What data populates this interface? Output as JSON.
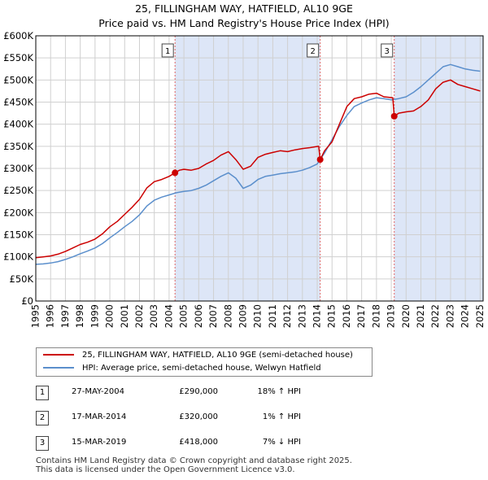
{
  "title_line1": "25, FILLINGHAM WAY, HATFIELD, AL10 9GE",
  "title_line2": "Price paid vs. HM Land Registry's House Price Index (HPI)",
  "colors": {
    "property": "#cc0000",
    "hpi": "#5b8fcc",
    "shade": "#dde6f7",
    "event_line": "#e06666"
  },
  "chart_data": {
    "type": "line",
    "title": "25, FILLINGHAM WAY, HATFIELD, AL10 9GE — Price paid vs. HM Land Registry's House Price Index (HPI)",
    "xlabel": "",
    "ylabel": "",
    "xlim": [
      1995,
      2025.2
    ],
    "ylim": [
      0,
      600000
    ],
    "y_ticks": [
      0,
      50000,
      100000,
      150000,
      200000,
      250000,
      300000,
      350000,
      400000,
      450000,
      500000,
      550000,
      600000
    ],
    "y_tick_labels": [
      "£0",
      "£50K",
      "£100K",
      "£150K",
      "£200K",
      "£250K",
      "£300K",
      "£350K",
      "£400K",
      "£450K",
      "£500K",
      "£550K",
      "£600K"
    ],
    "x_ticks": [
      1995,
      1996,
      1997,
      1998,
      1999,
      2000,
      2001,
      2002,
      2003,
      2004,
      2005,
      2006,
      2007,
      2008,
      2009,
      2010,
      2011,
      2012,
      2013,
      2014,
      2015,
      2016,
      2017,
      2018,
      2019,
      2020,
      2021,
      2022,
      2023,
      2024,
      2025
    ],
    "x_tick_labels": [
      "1995",
      "1996",
      "1997",
      "1998",
      "1999",
      "2000",
      "2001",
      "2002",
      "2003",
      "2004",
      "2005",
      "2006",
      "2007",
      "2008",
      "2009",
      "2010",
      "2011",
      "2012",
      "2013",
      "2014",
      "2015",
      "2016",
      "2017",
      "2018",
      "2019",
      "2020",
      "2021",
      "2022",
      "2023",
      "2024",
      "2025"
    ],
    "grid": true,
    "shaded_ranges": [
      [
        2004.4,
        2014.2
      ],
      [
        2019.2,
        2025.2
      ]
    ],
    "series": [
      {
        "name": "25, FILLINGHAM WAY, HATFIELD, AL10 9GE (semi-detached house)",
        "x": [
          1995,
          1995.5,
          1996,
          1996.5,
          1997,
          1997.5,
          1998,
          1998.5,
          1999,
          1999.5,
          2000,
          2000.5,
          2001,
          2001.5,
          2002,
          2002.5,
          2003,
          2003.5,
          2004,
          2004.4,
          2004.7,
          2005,
          2005.5,
          2006,
          2006.5,
          2007,
          2007.5,
          2008,
          2008.5,
          2009,
          2009.5,
          2010,
          2010.5,
          2011,
          2011.5,
          2012,
          2012.5,
          2013,
          2013.5,
          2014.1,
          2014.2,
          2014.5,
          2015,
          2015.5,
          2016,
          2016.5,
          2017,
          2017.5,
          2018,
          2018.5,
          2019.1,
          2019.2,
          2019.5,
          2020,
          2020.5,
          2021,
          2021.5,
          2022,
          2022.5,
          2023,
          2023.5,
          2024,
          2024.5,
          2025
        ],
        "y": [
          98000,
          100000,
          102000,
          106000,
          112000,
          120000,
          128000,
          133000,
          140000,
          152000,
          168000,
          180000,
          196000,
          212000,
          230000,
          256000,
          270000,
          275000,
          282000,
          290000,
          296000,
          298000,
          296000,
          300000,
          310000,
          318000,
          330000,
          338000,
          320000,
          298000,
          305000,
          325000,
          332000,
          336000,
          340000,
          338000,
          342000,
          345000,
          347000,
          350000,
          320000,
          340000,
          360000,
          400000,
          440000,
          458000,
          462000,
          468000,
          470000,
          462000,
          460000,
          418000,
          425000,
          428000,
          430000,
          440000,
          455000,
          480000,
          495000,
          500000,
          490000,
          485000,
          480000,
          475000
        ]
      },
      {
        "name": "HPI: Average price, semi-detached house, Welwyn Hatfield",
        "x": [
          1995,
          1995.5,
          1996,
          1996.5,
          1997,
          1997.5,
          1998,
          1998.5,
          1999,
          1999.5,
          2000,
          2000.5,
          2001,
          2001.5,
          2002,
          2002.5,
          2003,
          2003.5,
          2004,
          2004.5,
          2005,
          2005.5,
          2006,
          2006.5,
          2007,
          2007.5,
          2008,
          2008.5,
          2009,
          2009.5,
          2010,
          2010.5,
          2011,
          2011.5,
          2012,
          2012.5,
          2013,
          2013.5,
          2014,
          2014.5,
          2015,
          2015.5,
          2016,
          2016.5,
          2017,
          2017.5,
          2018,
          2018.5,
          2019,
          2019.5,
          2020,
          2020.5,
          2021,
          2021.5,
          2022,
          2022.5,
          2023,
          2023.5,
          2024,
          2024.5,
          2025
        ],
        "y": [
          83000,
          84000,
          86000,
          89000,
          94000,
          100000,
          107000,
          113000,
          120000,
          130000,
          143000,
          155000,
          168000,
          180000,
          195000,
          215000,
          228000,
          235000,
          240000,
          245000,
          248000,
          250000,
          255000,
          262000,
          272000,
          282000,
          290000,
          278000,
          255000,
          262000,
          275000,
          282000,
          285000,
          288000,
          290000,
          292000,
          296000,
          302000,
          310000,
          335000,
          365000,
          395000,
          420000,
          440000,
          448000,
          455000,
          460000,
          458000,
          455000,
          458000,
          462000,
          472000,
          485000,
          500000,
          515000,
          530000,
          535000,
          530000,
          525000,
          522000,
          520000
        ]
      }
    ],
    "events": [
      {
        "label": "1",
        "x": 2004.4,
        "y": 290000
      },
      {
        "label": "2",
        "x": 2014.2,
        "y": 320000
      },
      {
        "label": "3",
        "x": 2019.2,
        "y": 418000
      }
    ]
  },
  "legend": {
    "property_label": "25, FILLINGHAM WAY, HATFIELD, AL10 9GE (semi-detached house)",
    "hpi_label": "HPI: Average price, semi-detached house, Welwyn Hatfield"
  },
  "transactions": [
    {
      "num": "1",
      "date": "27-MAY-2004",
      "price": "£290,000",
      "hpi": "18% ↑ HPI"
    },
    {
      "num": "2",
      "date": "17-MAR-2014",
      "price": "£320,000",
      "hpi": "1% ↑ HPI"
    },
    {
      "num": "3",
      "date": "15-MAR-2019",
      "price": "£418,000",
      "hpi": "7% ↓ HPI"
    }
  ],
  "footer_line1": "Contains HM Land Registry data © Crown copyright and database right 2025.",
  "footer_line2": "This data is licensed under the Open Government Licence v3.0."
}
